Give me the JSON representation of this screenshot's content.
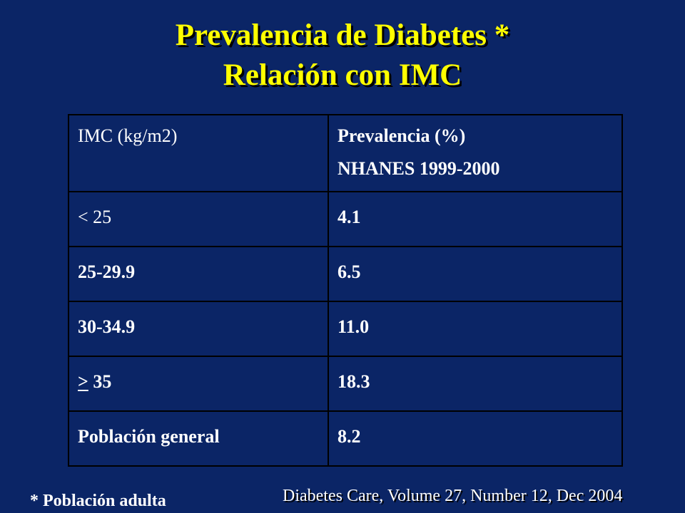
{
  "title": {
    "line1": "Prevalencia de Diabetes *",
    "line2": "Relación con IMC"
  },
  "colors": {
    "background": "#0b2566",
    "title": "#ffff00",
    "text": "#ffffff",
    "border": "#000000"
  },
  "table": {
    "header": {
      "col1": "IMC (kg/m2)",
      "col2_line1": "Prevalencia (%)",
      "col2_line2": "NHANES 1999-2000"
    },
    "rows": [
      {
        "imc": "< 25",
        "prevalence": "4.1"
      },
      {
        "imc": "25-29.9",
        "prevalence": "6.5"
      },
      {
        "imc": "30-34.9",
        "prevalence": "11.0"
      },
      {
        "imc_symbol": ">",
        "imc_value": " 35",
        "prevalence": "18.3"
      },
      {
        "imc": "Población general",
        "prevalence": "8.2"
      }
    ]
  },
  "footnote": "* Población adulta",
  "source": "Diabetes Care, Volume 27, Number 12, Dec 2004"
}
